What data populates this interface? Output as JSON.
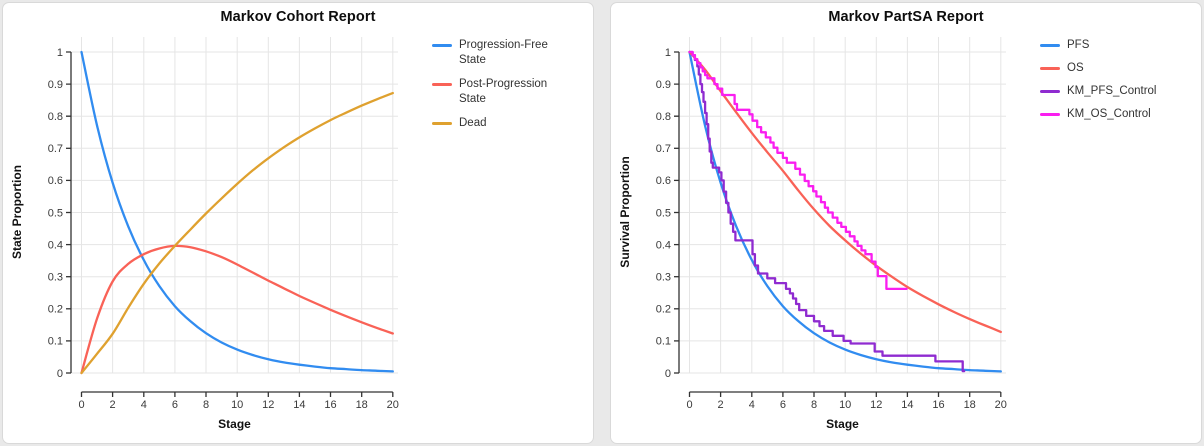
{
  "page": {
    "background": "#e9e9e9",
    "card_background": "#ffffff",
    "grid_color": "#e5e5e5",
    "axis_color": "#333333",
    "tick_label_color": "#3a3a3a"
  },
  "chart_data": [
    {
      "type": "line",
      "title": "Markov Cohort Report",
      "xlabel": "Stage",
      "ylabel": "State Proportion",
      "xticks": [
        0,
        2,
        4,
        6,
        8,
        10,
        12,
        14,
        16,
        18,
        20
      ],
      "yticks": [
        0,
        0.1,
        0.2,
        0.3,
        0.4,
        0.5,
        0.6,
        0.7,
        0.8,
        0.9,
        1
      ],
      "xlim": [
        -0.7,
        20.4
      ],
      "ylim": [
        -0.06,
        1.05
      ],
      "grid": true,
      "legend_position": "right",
      "x": [
        0,
        1,
        2,
        3,
        4,
        5,
        6,
        7,
        8,
        9,
        10,
        11,
        12,
        13,
        14,
        15,
        16,
        17,
        18,
        19,
        20
      ],
      "series": [
        {
          "name": "Progression-Free State",
          "color": "#318CF0",
          "style": "line",
          "y": [
            1,
            0.77,
            0.593,
            0.457,
            0.352,
            0.271,
            0.208,
            0.161,
            0.124,
            0.095,
            0.073,
            0.056,
            0.043,
            0.033,
            0.026,
            0.02,
            0.015,
            0.012,
            0.009,
            0.007,
            0.005
          ]
        },
        {
          "name": "Post-Progression State",
          "color": "#F96257",
          "style": "line",
          "y": [
            0,
            0.17,
            0.285,
            0.34,
            0.37,
            0.388,
            0.396,
            0.392,
            0.379,
            0.361,
            0.338,
            0.313,
            0.288,
            0.264,
            0.24,
            0.218,
            0.197,
            0.177,
            0.158,
            0.14,
            0.123
          ]
        },
        {
          "name": "Dead",
          "color": "#DFA12F",
          "style": "line",
          "y": [
            0,
            0.06,
            0.122,
            0.203,
            0.278,
            0.341,
            0.396,
            0.447,
            0.497,
            0.544,
            0.589,
            0.631,
            0.669,
            0.703,
            0.734,
            0.762,
            0.788,
            0.811,
            0.833,
            0.853,
            0.872
          ]
        }
      ]
    },
    {
      "type": "line",
      "title": "Markov PartSA Report",
      "xlabel": "Stage",
      "ylabel": "Survival Proportion",
      "xticks": [
        0,
        2,
        4,
        6,
        8,
        10,
        12,
        14,
        16,
        18,
        20
      ],
      "yticks": [
        0,
        0.1,
        0.2,
        0.3,
        0.4,
        0.5,
        0.6,
        0.7,
        0.8,
        0.9,
        1
      ],
      "xlim": [
        -0.7,
        20.4
      ],
      "ylim": [
        -0.06,
        1.05
      ],
      "grid": true,
      "legend_position": "right",
      "x": [
        0,
        1,
        2,
        3,
        4,
        5,
        6,
        7,
        8,
        9,
        10,
        11,
        12,
        13,
        14,
        15,
        16,
        17,
        18,
        19,
        20
      ],
      "series": [
        {
          "name": "PFS",
          "color": "#318CF0",
          "style": "line",
          "y": [
            1,
            0.77,
            0.593,
            0.457,
            0.352,
            0.271,
            0.208,
            0.161,
            0.124,
            0.095,
            0.073,
            0.056,
            0.043,
            0.033,
            0.026,
            0.02,
            0.015,
            0.012,
            0.009,
            0.007,
            0.005
          ]
        },
        {
          "name": "OS",
          "color": "#F96257",
          "style": "line",
          "y": [
            1,
            0.945,
            0.878,
            0.812,
            0.748,
            0.688,
            0.63,
            0.568,
            0.51,
            0.458,
            0.413,
            0.372,
            0.334,
            0.3,
            0.268,
            0.24,
            0.214,
            0.19,
            0.168,
            0.148,
            0.128
          ]
        },
        {
          "name": "KM_PFS_Control",
          "color": "#8F2BD0",
          "style": "step",
          "points": [
            [
              0,
              1
            ],
            [
              0.2,
              0.99
            ],
            [
              0.35,
              0.975
            ],
            [
              0.5,
              0.955
            ],
            [
              0.6,
              0.93
            ],
            [
              0.7,
              0.9
            ],
            [
              0.8,
              0.875
            ],
            [
              0.9,
              0.845
            ],
            [
              1,
              0.81
            ],
            [
              1.1,
              0.775
            ],
            [
              1.2,
              0.73
            ],
            [
              1.3,
              0.69
            ],
            [
              1.4,
              0.655
            ],
            [
              1.5,
              0.64
            ],
            [
              1.9,
              0.625
            ],
            [
              2.05,
              0.6
            ],
            [
              2.2,
              0.565
            ],
            [
              2.35,
              0.53
            ],
            [
              2.5,
              0.5
            ],
            [
              2.65,
              0.465
            ],
            [
              2.8,
              0.44
            ],
            [
              2.95,
              0.413
            ],
            [
              4.05,
              0.37
            ],
            [
              4.2,
              0.335
            ],
            [
              4.4,
              0.31
            ],
            [
              5,
              0.295
            ],
            [
              5.5,
              0.28
            ],
            [
              6.2,
              0.262
            ],
            [
              6.45,
              0.248
            ],
            [
              6.65,
              0.232
            ],
            [
              6.85,
              0.215
            ],
            [
              7.05,
              0.196
            ],
            [
              7.5,
              0.178
            ],
            [
              8,
              0.161
            ],
            [
              8.35,
              0.146
            ],
            [
              8.65,
              0.131
            ],
            [
              9.2,
              0.116
            ],
            [
              9.9,
              0.1
            ],
            [
              10.35,
              0.092
            ],
            [
              11.9,
              0.067
            ],
            [
              12.4,
              0.054
            ],
            [
              15.8,
              0.036
            ],
            [
              17.55,
              0.006
            ],
            [
              17.65,
              0.006
            ]
          ]
        },
        {
          "name": "KM_OS_Control",
          "color": "#FA1EF0",
          "style": "step",
          "points": [
            [
              0,
              1
            ],
            [
              0.2,
              0.99
            ],
            [
              0.35,
              0.978
            ],
            [
              0.5,
              0.965
            ],
            [
              0.7,
              0.952
            ],
            [
              0.85,
              0.94
            ],
            [
              1,
              0.928
            ],
            [
              1.15,
              0.918
            ],
            [
              1.6,
              0.9
            ],
            [
              1.8,
              0.886
            ],
            [
              2.1,
              0.866
            ],
            [
              2.9,
              0.838
            ],
            [
              3.05,
              0.82
            ],
            [
              3.85,
              0.806
            ],
            [
              4.05,
              0.786
            ],
            [
              4.35,
              0.766
            ],
            [
              4.6,
              0.75
            ],
            [
              4.9,
              0.734
            ],
            [
              5.2,
              0.718
            ],
            [
              5.4,
              0.702
            ],
            [
              5.65,
              0.686
            ],
            [
              6,
              0.67
            ],
            [
              6.25,
              0.655
            ],
            [
              6.8,
              0.636
            ],
            [
              7.1,
              0.618
            ],
            [
              7.4,
              0.598
            ],
            [
              7.65,
              0.582
            ],
            [
              7.95,
              0.566
            ],
            [
              8.15,
              0.55
            ],
            [
              8.45,
              0.532
            ],
            [
              8.7,
              0.515
            ],
            [
              8.9,
              0.5
            ],
            [
              9.2,
              0.484
            ],
            [
              9.5,
              0.468
            ],
            [
              9.75,
              0.455
            ],
            [
              10.05,
              0.44
            ],
            [
              10.3,
              0.426
            ],
            [
              10.6,
              0.41
            ],
            [
              10.8,
              0.396
            ],
            [
              11.05,
              0.382
            ],
            [
              11.3,
              0.37
            ],
            [
              11.7,
              0.347
            ],
            [
              11.95,
              0.33
            ],
            [
              12.1,
              0.302
            ],
            [
              12.65,
              0.262
            ],
            [
              13.95,
              0.262
            ]
          ]
        }
      ]
    }
  ]
}
